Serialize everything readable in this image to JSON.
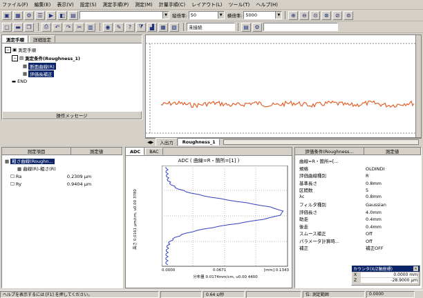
{
  "menu": [
    "ファイル(F)",
    "編集(E)",
    "表示(V)",
    "設定(S)",
    "測定手順(P)",
    "測定(M)",
    "計量手順(C)",
    "レイアウト(L)",
    "ツール(T)",
    "ヘルプ(H)"
  ],
  "toolbar": {
    "v_scale_label": "縦倍率:",
    "v_scale_value": "50",
    "h_scale_label": "横倍率:",
    "h_scale_value": "5000",
    "unit_label": "未接続"
  },
  "tree": {
    "tab1": "測定手順",
    "tab2": "詳細設定",
    "root": "測定手順",
    "node1": "測定条件(Roughness_1)",
    "node2": "断面曲線(R)",
    "node3": "評価長補正",
    "node4": "END",
    "message_bar": "操作メッセージ"
  },
  "graph": {
    "tab1": "入出力",
    "tab2": "Roughness_1",
    "line_color": "#e2602a"
  },
  "param_panel": {
    "col1": "測定項目",
    "col2": "測定値",
    "node1": "粗さ曲線(Roughn...",
    "node2": "曲線(R)-粗さ(R)",
    "rows": [
      {
        "name": "Ra",
        "value": "0.2309 μm"
      },
      {
        "name": "Ry",
        "value": "0.9404 μm"
      }
    ]
  },
  "adc_panel": {
    "tab1": "ADC",
    "tab2": "BAC",
    "title": "ADC ( 曲線=R・箇所=[1] )",
    "ylabel": "高さ 0.0161 μm/cm, u0.00 3780",
    "xlabel": "分布量 0.0174mm/cm, u0.00 4400",
    "x_ticks": [
      "0.0000",
      "0.0671",
      "[mm] 0.1343"
    ],
    "line_color": "#3040c0"
  },
  "cond_panel": {
    "col1": "評価条件(Roughness...",
    "col2": "測定値",
    "rows": [
      {
        "name": "曲線=R・箇所=[...",
        "value": ""
      },
      {
        "name": "規格",
        "value": "OLDINDI"
      },
      {
        "name": "評価曲線種別",
        "value": "R"
      },
      {
        "name": "基準長さ",
        "value": "0.8mm"
      },
      {
        "name": "区間数",
        "value": "5"
      },
      {
        "name": "λc",
        "value": "0.8mm"
      },
      {
        "name": "フィルタ種別",
        "value": "Gaussian"
      },
      {
        "name": "評価長さ",
        "value": "4.0mm"
      },
      {
        "name": "助走",
        "value": "0.4mm"
      },
      {
        "name": "後走",
        "value": "0.4mm"
      },
      {
        "name": "スムース補正",
        "value": "Off"
      },
      {
        "name": "パラメータ計算時...",
        "value": "Off"
      },
      {
        "name": "補正",
        "value": "補正OFF"
      }
    ]
  },
  "counter": {
    "title": "カウンタ(X/Z軸座標)",
    "x_label": "X",
    "x_value": "0.0000 mm",
    "z_label": "Z",
    "z_value": "-28.9000 μm"
  },
  "status": {
    "help": "ヘルプを表示するには [F1] を押してください。",
    "mode": "0.64 s/秒",
    "pos_label": "位: 測定範囲",
    "pos_value": "0.0000"
  }
}
